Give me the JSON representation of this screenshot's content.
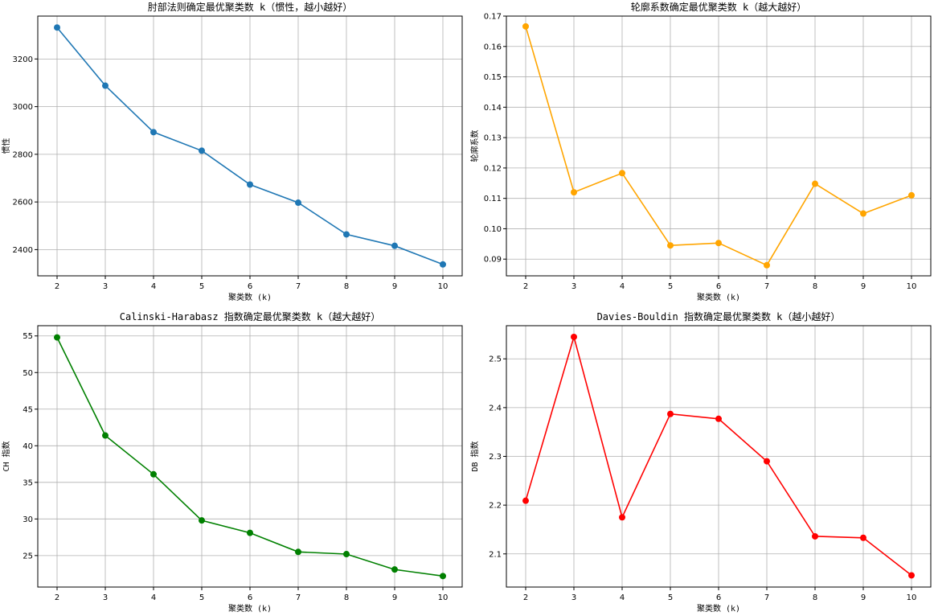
{
  "chart_data": [
    {
      "type": "line",
      "title": "肘部法则确定最优聚类数 k（惯性，越小越好）",
      "xlabel": "聚类数 (k)",
      "ylabel": "惯性",
      "x": [
        2,
        3,
        4,
        5,
        6,
        7,
        8,
        9,
        10
      ],
      "series": [
        {
          "values": [
            3332,
            3088,
            2893,
            2815,
            2673,
            2597,
            2464,
            2416,
            2338
          ]
        }
      ],
      "xlim": [
        1.6,
        10.4
      ],
      "ylim": [
        2290,
        3380
      ],
      "xticks": [
        2,
        3,
        4,
        5,
        6,
        7,
        8,
        9,
        10
      ],
      "yticks": [
        2400,
        2600,
        2800,
        3000,
        3200
      ],
      "color": "#1f77b4",
      "grid": true
    },
    {
      "type": "line",
      "title": "轮廓系数确定最优聚类数 k（越大越好）",
      "xlabel": "聚类数 (k)",
      "ylabel": "轮廓系数",
      "x": [
        2,
        3,
        4,
        5,
        6,
        7,
        8,
        9,
        10
      ],
      "series": [
        {
          "values": [
            0.1666,
            0.112,
            0.1183,
            0.0945,
            0.0953,
            0.088,
            0.1148,
            0.105,
            0.111
          ]
        }
      ],
      "xlim": [
        1.6,
        10.4
      ],
      "ylim": [
        0.0845,
        0.17
      ],
      "xticks": [
        2,
        3,
        4,
        5,
        6,
        7,
        8,
        9,
        10
      ],
      "yticks": [
        0.09,
        0.1,
        0.11,
        0.12,
        0.13,
        0.14,
        0.15,
        0.16,
        0.17
      ],
      "ytick_labels": [
        "0.09",
        "0.10",
        "0.11",
        "0.12",
        "0.13",
        "0.14",
        "0.15",
        "0.16",
        "0.17"
      ],
      "color": "#ffa500",
      "grid": true
    },
    {
      "type": "line",
      "title": "Calinski-Harabasz 指数确定最优聚类数 k（越大越好）",
      "xlabel": "聚类数 (k)",
      "ylabel": "CH 指数",
      "x": [
        2,
        3,
        4,
        5,
        6,
        7,
        8,
        9,
        10
      ],
      "series": [
        {
          "values": [
            54.8,
            41.4,
            36.1,
            29.8,
            28.1,
            25.5,
            25.2,
            23.1,
            22.2
          ]
        }
      ],
      "xlim": [
        1.6,
        10.4
      ],
      "ylim": [
        20.7,
        56.4
      ],
      "xticks": [
        2,
        3,
        4,
        5,
        6,
        7,
        8,
        9,
        10
      ],
      "yticks": [
        25,
        30,
        35,
        40,
        45,
        50,
        55
      ],
      "color": "#008000",
      "grid": true
    },
    {
      "type": "line",
      "title": "Davies-Bouldin 指数确定最优聚类数 k（越小越好）",
      "xlabel": "聚类数 (k)",
      "ylabel": "DB 指数",
      "x": [
        2,
        3,
        4,
        5,
        6,
        7,
        8,
        9,
        10
      ],
      "series": [
        {
          "values": [
            2.209,
            2.545,
            2.175,
            2.387,
            2.377,
            2.29,
            2.136,
            2.133,
            2.056
          ]
        }
      ],
      "xlim": [
        1.6,
        10.4
      ],
      "ylim": [
        2.032,
        2.568
      ],
      "xticks": [
        2,
        3,
        4,
        5,
        6,
        7,
        8,
        9,
        10
      ],
      "yticks": [
        2.1,
        2.2,
        2.3,
        2.4,
        2.5
      ],
      "ytick_labels": [
        "2.1",
        "2.2",
        "2.3",
        "2.4",
        "2.5"
      ],
      "color": "#ff0000",
      "grid": true
    }
  ]
}
